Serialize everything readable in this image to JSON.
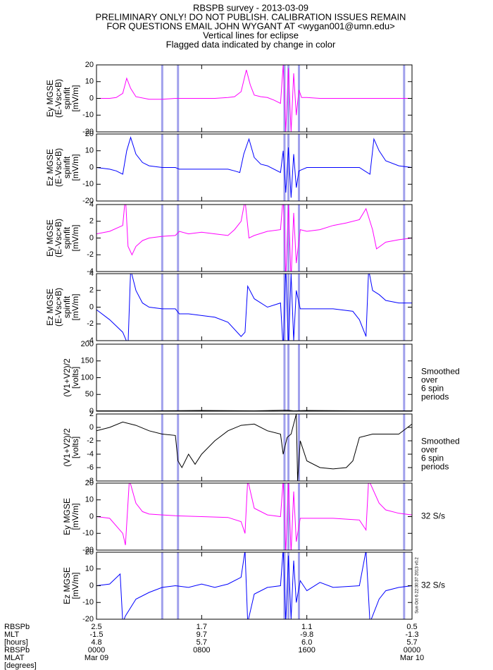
{
  "header": {
    "lines": [
      "RBSPB survey - 2013-03-09",
      "PRELIMINARY ONLY! DO NOT PUBLISH. CALIBRATION ISSUES REMAIN",
      "FOR QUESTIONS EMAIL JOHN WYGANT AT <wygan001@umn.edu>",
      "Vertical lines for eclipse",
      "Flagged data indicated by change in color"
    ]
  },
  "eclipse": {
    "color": "#a0a0ec",
    "hours": [
      5.0,
      6.2,
      14.3,
      14.6,
      15.4,
      23.4
    ]
  },
  "chart_data": [
    {
      "type": "line",
      "ylabel": [
        "Ey MGSE",
        "(E-Vsc×B)",
        "spinfit",
        "[mV/m]"
      ],
      "color": "#ff00ff",
      "xlim": [
        0,
        24
      ],
      "xticks": [
        0,
        8,
        16,
        24
      ],
      "ylim": [
        -20,
        20
      ],
      "yticks": [
        -20,
        -10,
        0,
        10,
        20
      ],
      "x": [
        0,
        1,
        1.5,
        2,
        2.3,
        2.6,
        3,
        4,
        5,
        6,
        7,
        8,
        9,
        10,
        10.5,
        11,
        11.4,
        11.7,
        12,
        12.5,
        13,
        13.5,
        14,
        14.2,
        14.4,
        14.6,
        14.8,
        15,
        15.2,
        15.4,
        15.6,
        16,
        17,
        18,
        19,
        20,
        21,
        22,
        23,
        24
      ],
      "values": [
        0,
        0,
        0.5,
        3,
        12,
        6,
        1,
        -0.5,
        -0.5,
        0,
        0,
        0,
        0,
        0.5,
        1,
        4,
        17,
        8,
        2,
        1,
        0.5,
        -1,
        -3,
        20,
        -20,
        18,
        -20,
        15,
        -10,
        5,
        0.5,
        0.5,
        0,
        0,
        0,
        0,
        0,
        0,
        0,
        0
      ]
    },
    {
      "type": "line",
      "ylabel": [
        "Ez MGSE",
        "(E-Vsc×B)",
        "spinfit",
        "[mV/m]"
      ],
      "color": "#0000ff",
      "xlim": [
        0,
        24
      ],
      "xticks": [
        0,
        8,
        16,
        24
      ],
      "ylim": [
        -20,
        20
      ],
      "yticks": [
        -20,
        -10,
        0,
        10,
        20
      ],
      "x": [
        0,
        1,
        1.5,
        2,
        2.3,
        2.6,
        3,
        3.5,
        4,
        5,
        6,
        6.3,
        8,
        10,
        10.5,
        10.9,
        11.2,
        11.6,
        12,
        12.5,
        13,
        14,
        14.2,
        14.4,
        14.6,
        14.8,
        15,
        15.2,
        15.4,
        16,
        18,
        20,
        20.4,
        20.8,
        21.1,
        21.5,
        22,
        23,
        24
      ],
      "values": [
        0,
        -1,
        -2,
        -4,
        10,
        18,
        8,
        3,
        1,
        0,
        0,
        -1,
        -1,
        -1,
        -2,
        -3,
        8,
        17,
        6,
        2,
        1,
        -3,
        10,
        -15,
        12,
        -18,
        8,
        -12,
        -2,
        0,
        0,
        0,
        -2,
        -4,
        17,
        10,
        4,
        1,
        0
      ]
    },
    {
      "type": "line",
      "ylabel": [
        "Ey MGSE",
        "(E-Vsc×B)",
        "spinfit",
        "[mV/m]"
      ],
      "color": "#ff00ff",
      "xlim": [
        0,
        24
      ],
      "xticks": [
        0,
        8,
        16,
        24
      ],
      "ylim": [
        -4,
        4
      ],
      "yticks": [
        -4,
        -2,
        0,
        2,
        4
      ],
      "x": [
        0,
        1,
        2,
        2.2,
        2.4,
        2.7,
        3,
        3.5,
        4,
        5,
        6,
        6.3,
        7,
        8,
        9,
        10,
        10.5,
        11,
        11.3,
        11.6,
        12,
        13,
        14,
        14.2,
        14.4,
        14.6,
        14.8,
        15,
        15.2,
        15.5,
        16,
        17,
        18,
        19,
        20,
        20.5,
        21,
        21.3,
        22,
        23,
        24
      ],
      "values": [
        0.5,
        0.8,
        1.5,
        5,
        -1,
        -2,
        -1,
        -0.3,
        0,
        0.2,
        0.3,
        0.8,
        0.5,
        0.7,
        0.5,
        0.3,
        1,
        2,
        4.5,
        0,
        0.3,
        0.8,
        1,
        5,
        -5,
        4,
        -5,
        3,
        -3,
        1,
        0.8,
        1,
        1.5,
        1.8,
        2.2,
        3.5,
        1,
        -1.3,
        -0.5,
        -0.2,
        0
      ]
    },
    {
      "type": "line",
      "ylabel": [
        "Ez MGSE",
        "(E-Vsc×B)",
        "spinfit",
        "[mV/m]"
      ],
      "color": "#0000ff",
      "xlim": [
        0,
        24
      ],
      "xticks": [
        0,
        8,
        16,
        24
      ],
      "ylim": [
        -4,
        4
      ],
      "yticks": [
        -4,
        -2,
        0,
        2,
        4
      ],
      "x": [
        0,
        1,
        2,
        2.4,
        2.6,
        3,
        3.5,
        4,
        5,
        6,
        6.3,
        7,
        8,
        9,
        10,
        11,
        11.3,
        11.5,
        12,
        13,
        14,
        14.2,
        14.4,
        14.6,
        14.8,
        15,
        15.2,
        15.5,
        16,
        18,
        19.5,
        20,
        20.5,
        20.7,
        21,
        21.5,
        22,
        23,
        24
      ],
      "values": [
        -0.3,
        -1.5,
        -3,
        -4.5,
        4.5,
        2,
        0.5,
        0,
        -0.2,
        -0.2,
        -0.8,
        -0.8,
        -1,
        -1.2,
        -1.8,
        -3.5,
        -3,
        2.5,
        1,
        0,
        0.5,
        -5,
        5,
        -5,
        4,
        -4,
        2,
        -0.2,
        -0.2,
        -0.2,
        -0.5,
        -1.5,
        -3.5,
        4.5,
        2,
        1.5,
        0.8,
        0.5,
        0.5
      ]
    },
    {
      "type": "line",
      "ylabel": [
        "(V1+V2)/2",
        "[volts]"
      ],
      "annotation": [
        "Smoothed",
        "over",
        "6 spin",
        "periods"
      ],
      "color": "#000000",
      "xlim": [
        0,
        24
      ],
      "xticks": [
        0,
        8,
        16,
        24
      ],
      "ylim": [
        0,
        200
      ],
      "yticks": [
        0,
        50,
        100,
        150,
        200
      ],
      "x": [
        0,
        4,
        8,
        12,
        14.5,
        15,
        16,
        20,
        24
      ],
      "values": [
        1,
        1,
        2,
        1,
        3,
        1,
        2,
        1,
        1
      ]
    },
    {
      "type": "line",
      "ylabel": [
        "(V1+V2)/2",
        "[volts]"
      ],
      "annotation": [
        "Smoothed",
        "over",
        "6 spin",
        "periods"
      ],
      "color": "#000000",
      "xlim": [
        0,
        24
      ],
      "xticks": [
        0,
        8,
        16,
        24
      ],
      "ylim": [
        -8,
        2
      ],
      "yticks": [
        -8,
        -6,
        -4,
        -2,
        0,
        2
      ],
      "x": [
        0,
        1,
        2,
        3,
        4,
        5,
        6,
        6.2,
        6.5,
        7,
        7.5,
        8,
        9,
        10,
        11,
        12,
        13,
        14,
        14.2,
        14.5,
        14.8,
        15.2,
        15.3,
        15.5,
        16,
        17,
        18,
        19,
        19.5,
        20,
        21,
        22,
        23,
        24
      ],
      "values": [
        -0.5,
        0,
        0.8,
        0.3,
        -0.5,
        -1,
        -1.2,
        -5,
        -6,
        -4,
        -5.5,
        -4,
        -2,
        -0.5,
        0.3,
        0.5,
        -0.5,
        -1,
        -4,
        -1.5,
        -1,
        2,
        -8,
        -2,
        -5,
        -6,
        -6.2,
        -6,
        -5,
        -1.5,
        -1,
        -1,
        -1,
        0.5
      ]
    },
    {
      "type": "line",
      "ylabel": [
        "Ey MGSE",
        "[mV/m]"
      ],
      "annotation": [
        "32 S/s"
      ],
      "color": "#ff00ff",
      "xlim": [
        0,
        24
      ],
      "xticks": [
        0,
        8,
        16,
        24
      ],
      "ylim": [
        -20,
        20
      ],
      "yticks": [
        -20,
        -10,
        0,
        10,
        20
      ],
      "x": [
        0,
        1,
        2,
        2.2,
        2.5,
        3,
        3.5,
        4,
        5,
        6,
        8,
        10,
        11,
        11.3,
        11.5,
        12,
        13,
        14,
        14.2,
        14.4,
        14.6,
        14.8,
        15,
        15.2,
        15.5,
        16,
        18,
        20,
        20.5,
        20.7,
        21.5,
        22,
        23,
        24
      ],
      "values": [
        0,
        -1,
        -10,
        -17,
        22,
        8,
        3,
        1.5,
        1,
        0.5,
        0,
        -0.5,
        -3,
        -10,
        22,
        5,
        1,
        0,
        22,
        -22,
        22,
        -22,
        15,
        -15,
        -1,
        -1,
        -1,
        -2,
        -8,
        22,
        8,
        4,
        2,
        1
      ]
    },
    {
      "type": "line",
      "ylabel": [
        "Ez MGSE",
        "[mV/m]"
      ],
      "annotation": [
        "32 S/s"
      ],
      "color": "#0000ff",
      "xlim": [
        0,
        24
      ],
      "xticks": [
        0,
        8,
        16,
        24
      ],
      "ylim": [
        -20,
        20
      ],
      "yticks": [
        -20,
        -10,
        0,
        10,
        20
      ],
      "x": [
        0,
        1,
        1.8,
        2,
        2.2,
        3,
        4,
        5,
        6,
        7,
        8,
        9,
        10,
        11,
        11.3,
        11.5,
        12,
        13,
        14,
        14.2,
        14.4,
        14.6,
        14.8,
        15,
        15.2,
        15.5,
        16,
        17,
        18,
        20,
        20.5,
        20.8,
        21.5,
        22,
        23,
        24
      ],
      "values": [
        0,
        1,
        7,
        -22,
        -18,
        -8,
        -4,
        -1,
        0,
        -1,
        1,
        -1,
        1,
        5,
        21,
        -22,
        -5,
        -1,
        0,
        22,
        -22,
        18,
        -20,
        15,
        -10,
        3,
        -3,
        2,
        -1,
        0,
        21,
        -22,
        -8,
        -3,
        -1,
        0
      ]
    }
  ],
  "stamp": "Sun Oct  6 22:30:37 2013 v0.2",
  "footer": {
    "labels": [
      "RBSPb",
      "MLT",
      "[hours]",
      "RBSPb",
      "MLAT",
      "[degrees]"
    ],
    "columns": [
      [
        "2.5",
        "-1.5",
        "4.8",
        "0000",
        "Mar 09"
      ],
      [
        "1.7",
        "9.7",
        "5.7",
        "0800"
      ],
      [
        "1.1",
        "-9.8",
        "6.0",
        "1600"
      ],
      [
        "0.5",
        "-1.3",
        "5.7",
        "0000",
        "Mar 10"
      ]
    ]
  }
}
